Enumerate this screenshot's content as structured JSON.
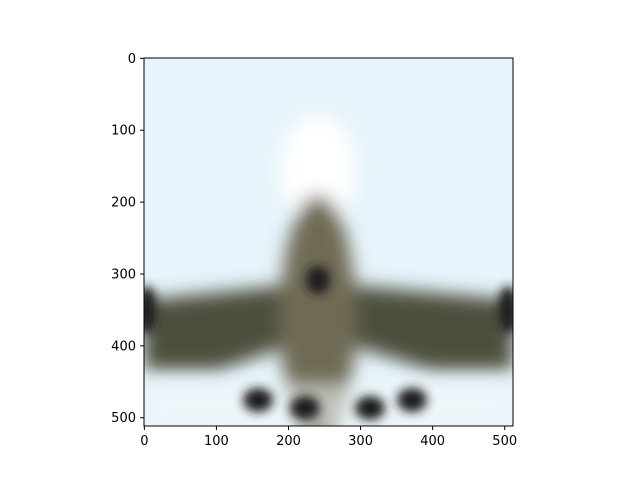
{
  "chart_data": {
    "type": "image",
    "xlim": [
      0,
      511
    ],
    "ylim": [
      511,
      0
    ],
    "x_ticks": [
      0,
      100,
      200,
      300,
      400,
      500
    ],
    "y_ticks": [
      0,
      100,
      200,
      300,
      400,
      500
    ],
    "x_tick_labels": [
      "0",
      "100",
      "200",
      "300",
      "400",
      "500"
    ],
    "y_tick_labels": [
      "0",
      "100",
      "200",
      "300",
      "400",
      "500"
    ],
    "title": "",
    "xlabel": "",
    "ylabel": "",
    "grid": false
  },
  "image_content": {
    "subject": "blurred front view of an airliner",
    "colors": {
      "sky": "#e6f4fb",
      "fuselage": "#6f6b55",
      "wing": "#4d4f3d",
      "engine": "#1e1e1e",
      "nose": "#ffffff"
    }
  }
}
